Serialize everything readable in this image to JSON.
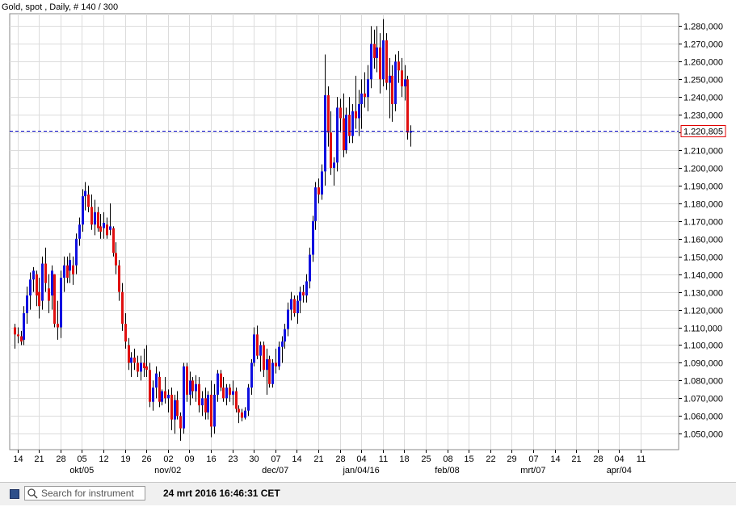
{
  "header": {
    "title": "Gold, spot , Daily, # 140 / 300"
  },
  "toolbar": {
    "search_placeholder": "Search for instrument",
    "timestamp": "24 mrt 2016 16:46:31 CET"
  },
  "chart_data": {
    "type": "candlestick",
    "title": "Gold, spot , Daily, # 140 / 300",
    "ylim": [
      1041000,
      1287000
    ],
    "grid": true,
    "yticks": [
      1050000,
      1060000,
      1070000,
      1080000,
      1090000,
      1100000,
      1110000,
      1120000,
      1130000,
      1140000,
      1150000,
      1160000,
      1170000,
      1180000,
      1190000,
      1200000,
      1210000,
      1220000,
      1230000,
      1240000,
      1250000,
      1260000,
      1270000,
      1280000
    ],
    "ytick_labels": [
      "1.050,000",
      "1.060,000",
      "1.070,000",
      "1.080,000",
      "1.090,000",
      "1.100,000",
      "1.110,000",
      "1.120,000",
      "1.130,000",
      "1.140,000",
      "1.150,000",
      "1.160,000",
      "1.170,000",
      "1.180,000",
      "1.190,000",
      "1.200,000",
      "1.210,000",
      "1.220,000",
      "1.230,000",
      "1.240,000",
      "1.250,000",
      "1.260,000",
      "1.270,000",
      "1.280,000"
    ],
    "xtick_labels": [
      "14",
      "21",
      "28",
      "05",
      "12",
      "19",
      "26",
      "02",
      "09",
      "16",
      "23",
      "30",
      "07",
      "14",
      "21",
      "28",
      "04",
      "11",
      "18",
      "25",
      "08",
      "15",
      "22",
      "29",
      "07",
      "14",
      "21",
      "28",
      "04",
      "11"
    ],
    "month_labels": [
      "okt/05",
      "nov/02",
      "dec/07",
      "jan/04/16",
      "feb/08",
      "mrt/07",
      "apr/04"
    ],
    "last_price": 1220805,
    "last_price_label": "1.220,805",
    "colors": {
      "up": "#1010e0",
      "down": "#e01010",
      "grid": "#dcdcdc",
      "last_line": "#0000c0",
      "last_label_border": "#e00000"
    },
    "candles": [
      [
        1110000,
        1112000,
        1098000,
        1106000
      ],
      [
        1106000,
        1110000,
        1101000,
        1105000
      ],
      [
        1105000,
        1108000,
        1100000,
        1102000
      ],
      [
        1103000,
        1122000,
        1100000,
        1118000
      ],
      [
        1118000,
        1133000,
        1112000,
        1128000
      ],
      [
        1128000,
        1141000,
        1120000,
        1137000
      ],
      [
        1137000,
        1144000,
        1130000,
        1142000
      ],
      [
        1140000,
        1142000,
        1122000,
        1128000
      ],
      [
        1130000,
        1138000,
        1115000,
        1122000
      ],
      [
        1125000,
        1150000,
        1120000,
        1146000
      ],
      [
        1146000,
        1155000,
        1130000,
        1135000
      ],
      [
        1132000,
        1140000,
        1118000,
        1125000
      ],
      [
        1128000,
        1145000,
        1120000,
        1142000
      ],
      [
        1140000,
        1140000,
        1110000,
        1112000
      ],
      [
        1112000,
        1125000,
        1103000,
        1110000
      ],
      [
        1110000,
        1142000,
        1104000,
        1138000
      ],
      [
        1138000,
        1150000,
        1130000,
        1145000
      ],
      [
        1145000,
        1150000,
        1135000,
        1138000
      ],
      [
        1142000,
        1152000,
        1135000,
        1148000
      ],
      [
        1145000,
        1150000,
        1134000,
        1140000
      ],
      [
        1145000,
        1163000,
        1140000,
        1160000
      ],
      [
        1160000,
        1172000,
        1156000,
        1168000
      ],
      [
        1168000,
        1188000,
        1164000,
        1184000
      ],
      [
        1184000,
        1192000,
        1176000,
        1187000
      ],
      [
        1185000,
        1190000,
        1175000,
        1178000
      ],
      [
        1178000,
        1185000,
        1165000,
        1168000
      ],
      [
        1168000,
        1182000,
        1162000,
        1175000
      ],
      [
        1175000,
        1178000,
        1164000,
        1166000
      ],
      [
        1167000,
        1174000,
        1160000,
        1164000
      ],
      [
        1166000,
        1175000,
        1160000,
        1169000
      ],
      [
        1168000,
        1172000,
        1160000,
        1162000
      ],
      [
        1165000,
        1180000,
        1162000,
        1167000
      ],
      [
        1166000,
        1167000,
        1150000,
        1152000
      ],
      [
        1152000,
        1158000,
        1140000,
        1145000
      ],
      [
        1145000,
        1148000,
        1125000,
        1130000
      ],
      [
        1130000,
        1135000,
        1108000,
        1112000
      ],
      [
        1112000,
        1118000,
        1098000,
        1102000
      ],
      [
        1100000,
        1104000,
        1086000,
        1090000
      ],
      [
        1090000,
        1096000,
        1082000,
        1093000
      ],
      [
        1093000,
        1098000,
        1086000,
        1090000
      ],
      [
        1090000,
        1094000,
        1082000,
        1085000
      ],
      [
        1085000,
        1094000,
        1080000,
        1090000
      ],
      [
        1090000,
        1098000,
        1082000,
        1087000
      ],
      [
        1088000,
        1100000,
        1082000,
        1086000
      ],
      [
        1086000,
        1090000,
        1065000,
        1068000
      ],
      [
        1068000,
        1080000,
        1063000,
        1076000
      ],
      [
        1076000,
        1088000,
        1070000,
        1084000
      ],
      [
        1082000,
        1085000,
        1065000,
        1068000
      ],
      [
        1068000,
        1075000,
        1066000,
        1074000
      ],
      [
        1074000,
        1082000,
        1067000,
        1070000
      ],
      [
        1070000,
        1075000,
        1062000,
        1072000
      ],
      [
        1072000,
        1076000,
        1052000,
        1058000
      ],
      [
        1058000,
        1072000,
        1050000,
        1069000
      ],
      [
        1069000,
        1074000,
        1058000,
        1060000
      ],
      [
        1060000,
        1062000,
        1046000,
        1053000
      ],
      [
        1053000,
        1090000,
        1050000,
        1088000
      ],
      [
        1088000,
        1090000,
        1068000,
        1072000
      ],
      [
        1072000,
        1085000,
        1066000,
        1080000
      ],
      [
        1080000,
        1082000,
        1070000,
        1074000
      ],
      [
        1074000,
        1083000,
        1068000,
        1078000
      ],
      [
        1078000,
        1082000,
        1062000,
        1066000
      ],
      [
        1066000,
        1074000,
        1060000,
        1070000
      ],
      [
        1070000,
        1076000,
        1058000,
        1062000
      ],
      [
        1062000,
        1074000,
        1058000,
        1072000
      ],
      [
        1072000,
        1080000,
        1048000,
        1054000
      ],
      [
        1054000,
        1078000,
        1050000,
        1072000
      ],
      [
        1072000,
        1086000,
        1068000,
        1084000
      ],
      [
        1084000,
        1086000,
        1074000,
        1076000
      ],
      [
        1076000,
        1082000,
        1068000,
        1070000
      ],
      [
        1070000,
        1078000,
        1066000,
        1076000
      ],
      [
        1076000,
        1078000,
        1068000,
        1072000
      ],
      [
        1072000,
        1080000,
        1066000,
        1074000
      ],
      [
        1074000,
        1076000,
        1062000,
        1064000
      ],
      [
        1064000,
        1066000,
        1056000,
        1062000
      ],
      [
        1062000,
        1064000,
        1057000,
        1059000
      ],
      [
        1059000,
        1065000,
        1058000,
        1063000
      ],
      [
        1063000,
        1078000,
        1060000,
        1076000
      ],
      [
        1076000,
        1092000,
        1072000,
        1090000
      ],
      [
        1090000,
        1110000,
        1088000,
        1106000
      ],
      [
        1106000,
        1111000,
        1092000,
        1094000
      ],
      [
        1094000,
        1102000,
        1085000,
        1100000
      ],
      [
        1100000,
        1102000,
        1082000,
        1086000
      ],
      [
        1086000,
        1098000,
        1072000,
        1092000
      ],
      [
        1092000,
        1094000,
        1076000,
        1078000
      ],
      [
        1078000,
        1092000,
        1076000,
        1090000
      ],
      [
        1090000,
        1098000,
        1084000,
        1088000
      ],
      [
        1088000,
        1102000,
        1086000,
        1099000
      ],
      [
        1099000,
        1105000,
        1090000,
        1102000
      ],
      [
        1102000,
        1112000,
        1098000,
        1109000
      ],
      [
        1109000,
        1124000,
        1105000,
        1120000
      ],
      [
        1120000,
        1130000,
        1114000,
        1126000
      ],
      [
        1126000,
        1128000,
        1116000,
        1118000
      ],
      [
        1118000,
        1128000,
        1112000,
        1125000
      ],
      [
        1125000,
        1133000,
        1118000,
        1130000
      ],
      [
        1130000,
        1134000,
        1124000,
        1128000
      ],
      [
        1128000,
        1140000,
        1124000,
        1136000
      ],
      [
        1136000,
        1155000,
        1132000,
        1151000
      ],
      [
        1151000,
        1173000,
        1147000,
        1170000
      ],
      [
        1170000,
        1192000,
        1165000,
        1189000
      ],
      [
        1189000,
        1194000,
        1180000,
        1185000
      ],
      [
        1185000,
        1202000,
        1182000,
        1198000
      ],
      [
        1198000,
        1264000,
        1190000,
        1241000
      ],
      [
        1241000,
        1246000,
        1212000,
        1220000
      ],
      [
        1220000,
        1232000,
        1196000,
        1200000
      ],
      [
        1200000,
        1206000,
        1190000,
        1203000
      ],
      [
        1203000,
        1240000,
        1198000,
        1234000
      ],
      [
        1234000,
        1239000,
        1220000,
        1228000
      ],
      [
        1228000,
        1242000,
        1206000,
        1210000
      ],
      [
        1210000,
        1234000,
        1208000,
        1230000
      ],
      [
        1230000,
        1240000,
        1214000,
        1218000
      ],
      [
        1218000,
        1236000,
        1214000,
        1232000
      ],
      [
        1232000,
        1252000,
        1222000,
        1228000
      ],
      [
        1228000,
        1244000,
        1218000,
        1236000
      ],
      [
        1236000,
        1250000,
        1222000,
        1242000
      ],
      [
        1242000,
        1254000,
        1234000,
        1240000
      ],
      [
        1240000,
        1258000,
        1232000,
        1250000
      ],
      [
        1250000,
        1280000,
        1245000,
        1270000
      ],
      [
        1270000,
        1278000,
        1256000,
        1262000
      ],
      [
        1262000,
        1280000,
        1254000,
        1268000
      ],
      [
        1268000,
        1276000,
        1242000,
        1250000
      ],
      [
        1250000,
        1284000,
        1246000,
        1272000
      ],
      [
        1272000,
        1276000,
        1244000,
        1248000
      ],
      [
        1248000,
        1262000,
        1228000,
        1252000
      ],
      [
        1252000,
        1258000,
        1226000,
        1236000
      ],
      [
        1236000,
        1264000,
        1232000,
        1260000
      ],
      [
        1260000,
        1266000,
        1248000,
        1255000
      ],
      [
        1255000,
        1262000,
        1240000,
        1246000
      ],
      [
        1246000,
        1258000,
        1238000,
        1250000
      ],
      [
        1250000,
        1252000,
        1216000,
        1220000
      ],
      [
        1220000,
        1224000,
        1212000,
        1220805
      ]
    ]
  }
}
